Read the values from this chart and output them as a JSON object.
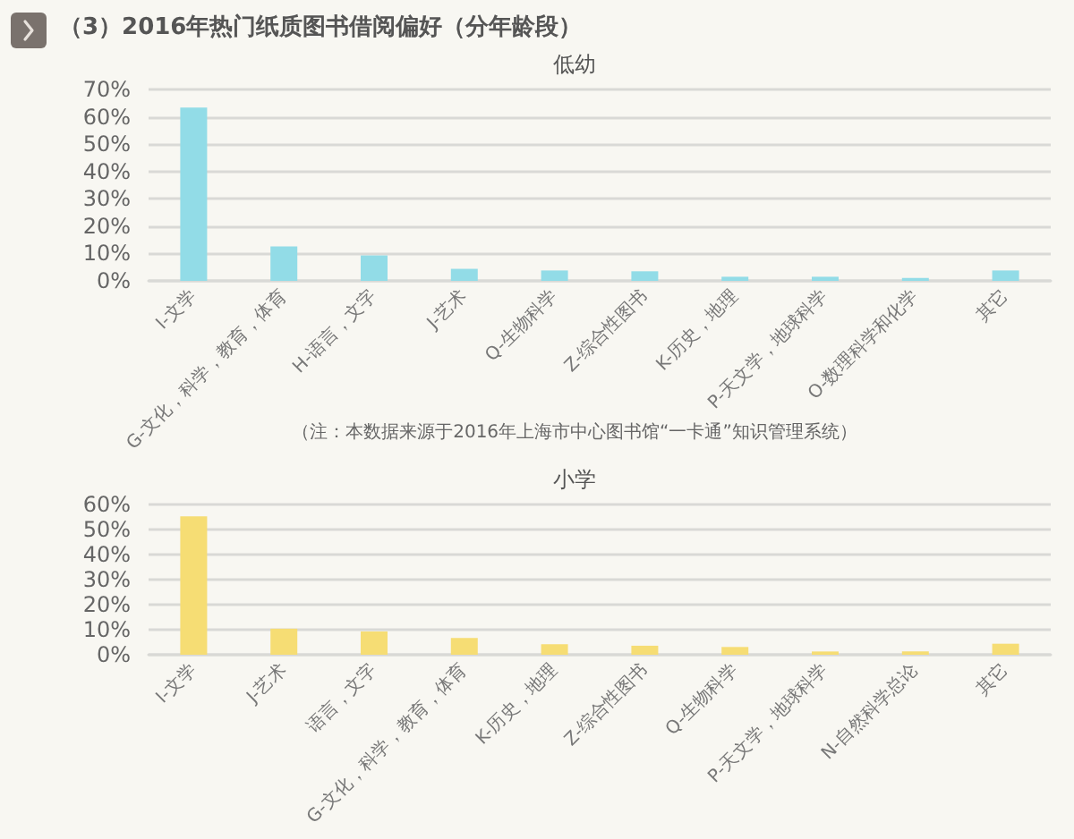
{
  "chart_data": [
    {
      "type": "bar",
      "title": "（3）2016年热门纸质图书借阅偏好（分年龄段）",
      "subtitle": "低幼",
      "annotations": [
        "（注：本数据来源于2016年上海市中心图书馆“一卡通”知识管理系统）"
      ],
      "categories": [
        "I-文学",
        "G-文化，科学，教育，体育",
        "H-语言，文字",
        "J-艺术",
        "Q-生物科学",
        "Z-综合性图书",
        "K-历史，地理",
        "P-天文学，地球科学",
        "O-数理科学和化学",
        "其它"
      ],
      "values": [
        63.4,
        12.6,
        9.3,
        4.4,
        3.8,
        3.5,
        1.5,
        1.5,
        1.1,
        3.8
      ],
      "color": "#92dce7",
      "ylim": [
        0,
        70
      ],
      "yticks": [
        {
          "value": 0,
          "label": "0%"
        },
        {
          "value": 10,
          "label": "10%"
        },
        {
          "value": 20,
          "label": "20%"
        },
        {
          "value": 30,
          "label": "30%"
        },
        {
          "value": 40,
          "label": "40%"
        },
        {
          "value": 50,
          "label": "50%"
        },
        {
          "value": 60,
          "label": "60%"
        },
        {
          "value": 70,
          "label": "70%"
        }
      ],
      "grid": "y"
    },
    {
      "type": "bar",
      "title": "小学",
      "categories": [
        "I-文学",
        "J-艺术",
        "语言，文字",
        "G-文化，科学，教育，体育",
        "K-历史，地理",
        "Z-综合性图书",
        "Q-生物科学",
        "P-天文学，地球科学",
        "N-自然科学总论",
        "其它"
      ],
      "values": [
        55.3,
        10.4,
        9.3,
        6.7,
        4.2,
        3.6,
        3.1,
        1.3,
        1.3,
        4.4
      ],
      "color": "#f6dd74",
      "ylim": [
        0,
        60
      ],
      "yticks": [
        {
          "value": 0,
          "label": "0%"
        },
        {
          "value": 10,
          "label": "10%"
        },
        {
          "value": 20,
          "label": "20%"
        },
        {
          "value": 30,
          "label": "30%"
        },
        {
          "value": 40,
          "label": "40%"
        },
        {
          "value": 50,
          "label": "50%"
        },
        {
          "value": 60,
          "label": "60%"
        }
      ],
      "grid": "y"
    }
  ]
}
